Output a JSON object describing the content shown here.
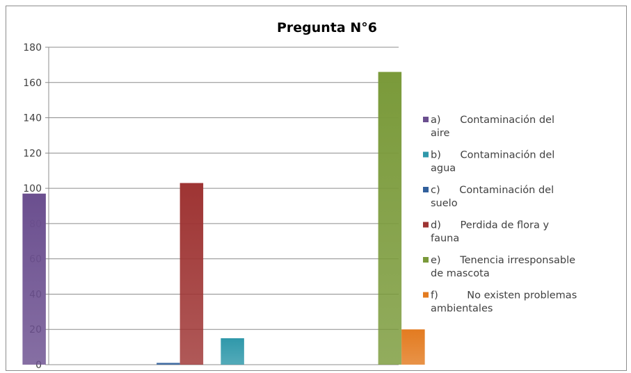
{
  "chart_data": {
    "type": "bar",
    "title": "Pregunta N°6",
    "xlabel": "",
    "ylabel": "",
    "ylim": [
      0,
      180
    ],
    "yticks": [
      0,
      20,
      40,
      60,
      80,
      100,
      120,
      140,
      160,
      180
    ],
    "grid": true,
    "legend_position": "right",
    "categories": [
      "",
      "",
      "",
      ""
    ],
    "series": [
      {
        "name": "a)      Contaminación del aire",
        "legend_lines": [
          "a)      Contaminación del",
          "aire"
        ],
        "color": "#6b4f8f",
        "values": [
          97,
          0,
          0,
          0
        ]
      },
      {
        "name": "b)      Contaminación del agua",
        "legend_lines": [
          "b)      Contaminación del",
          "agua"
        ],
        "color": "#2f98aa",
        "values": [
          0,
          0,
          15,
          0
        ]
      },
      {
        "name": "c)      Contaminación del suelo",
        "legend_lines": [
          "c)      Contaminación del",
          "suelo"
        ],
        "color": "#31609c",
        "values": [
          0,
          1,
          0,
          0
        ]
      },
      {
        "name": "d)      Perdida de flora y fauna",
        "legend_lines": [
          "d)      Perdida de flora y",
          "fauna"
        ],
        "color": "#9e3433",
        "values": [
          0,
          103,
          0,
          0
        ]
      },
      {
        "name": "e)      Tenencia irresponsable de mascota",
        "legend_lines": [
          "e)      Tenencia irresponsable",
          "de mascota"
        ],
        "color": "#7a9a3a",
        "values": [
          0,
          0,
          0,
          166
        ]
      },
      {
        "name": "f)         No existen problemas ambientales",
        "legend_lines": [
          "f)         No existen problemas",
          "ambientales"
        ],
        "color": "#e37b20",
        "values": [
          0,
          0,
          0,
          20
        ]
      }
    ]
  }
}
